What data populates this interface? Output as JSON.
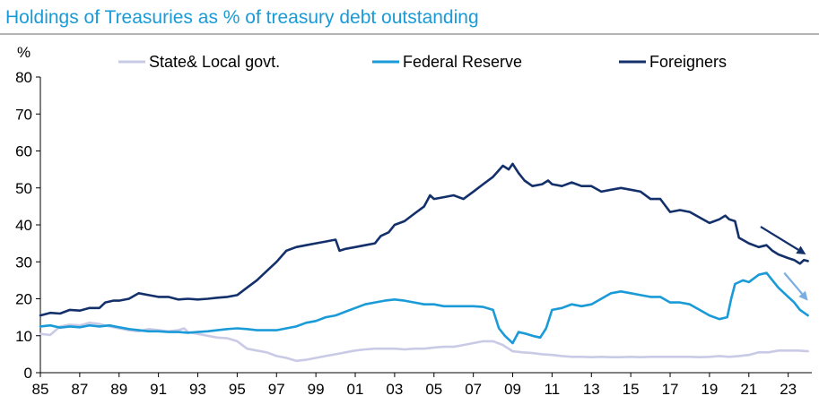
{
  "chart_data": {
    "type": "line",
    "title": "Holdings of Treasuries as % of treasury debt outstanding",
    "ylabel": "%",
    "xlabel": "",
    "xlim": [
      1985,
      2024.2
    ],
    "ylim": [
      0,
      80
    ],
    "yticks": [
      0,
      10,
      20,
      30,
      40,
      50,
      60,
      70,
      80
    ],
    "xticks": [
      {
        "x": 1985,
        "label": "85"
      },
      {
        "x": 1987,
        "label": "87"
      },
      {
        "x": 1989,
        "label": "89"
      },
      {
        "x": 1991,
        "label": "91"
      },
      {
        "x": 1993,
        "label": "93"
      },
      {
        "x": 1995,
        "label": "95"
      },
      {
        "x": 1997,
        "label": "97"
      },
      {
        "x": 1999,
        "label": "99"
      },
      {
        "x": 2001,
        "label": "01"
      },
      {
        "x": 2003,
        "label": "03"
      },
      {
        "x": 2005,
        "label": "05"
      },
      {
        "x": 2007,
        "label": "07"
      },
      {
        "x": 2009,
        "label": "09"
      },
      {
        "x": 2011,
        "label": "11"
      },
      {
        "x": 2013,
        "label": "13"
      },
      {
        "x": 2015,
        "label": "15"
      },
      {
        "x": 2017,
        "label": "17"
      },
      {
        "x": 2019,
        "label": "19"
      },
      {
        "x": 2021,
        "label": "21"
      },
      {
        "x": 2023,
        "label": "23"
      }
    ],
    "grid": false,
    "legend": "top",
    "title_color": "#1a9bd7",
    "series": [
      {
        "name": "State& Local govt.",
        "color": "#c9cbe6",
        "points": [
          [
            1985,
            10.5
          ],
          [
            1985.5,
            10.2
          ],
          [
            1986,
            12.5
          ],
          [
            1986.5,
            13
          ],
          [
            1987,
            12.8
          ],
          [
            1987.5,
            13.5
          ],
          [
            1988,
            13.2
          ],
          [
            1988.5,
            12.5
          ],
          [
            1989,
            12
          ],
          [
            1989.5,
            11.5
          ],
          [
            1990,
            11.2
          ],
          [
            1990.5,
            11.8
          ],
          [
            1991,
            11.5
          ],
          [
            1991.5,
            11.2
          ],
          [
            1992,
            11.5
          ],
          [
            1992.3,
            12
          ],
          [
            1992.5,
            11
          ],
          [
            1993,
            10.5
          ],
          [
            1993.5,
            10
          ],
          [
            1994,
            9.5
          ],
          [
            1994.5,
            9.3
          ],
          [
            1995,
            8.5
          ],
          [
            1995.5,
            6.5
          ],
          [
            1996,
            6
          ],
          [
            1996.5,
            5.5
          ],
          [
            1997,
            4.5
          ],
          [
            1997.5,
            4
          ],
          [
            1998,
            3.2
          ],
          [
            1998.5,
            3.5
          ],
          [
            1999,
            4
          ],
          [
            1999.5,
            4.5
          ],
          [
            2000,
            5
          ],
          [
            2000.5,
            5.5
          ],
          [
            2001,
            6
          ],
          [
            2001.5,
            6.3
          ],
          [
            2002,
            6.5
          ],
          [
            2002.5,
            6.5
          ],
          [
            2003,
            6.5
          ],
          [
            2003.5,
            6.3
          ],
          [
            2004,
            6.5
          ],
          [
            2004.5,
            6.5
          ],
          [
            2005,
            6.8
          ],
          [
            2005.5,
            7
          ],
          [
            2006,
            7
          ],
          [
            2006.5,
            7.5
          ],
          [
            2007,
            8
          ],
          [
            2007.5,
            8.5
          ],
          [
            2008,
            8.5
          ],
          [
            2008.5,
            7.5
          ],
          [
            2009,
            5.8
          ],
          [
            2009.5,
            5.5
          ],
          [
            2010,
            5.3
          ],
          [
            2010.5,
            5
          ],
          [
            2011,
            4.8
          ],
          [
            2011.5,
            4.5
          ],
          [
            2012,
            4.3
          ],
          [
            2012.5,
            4.3
          ],
          [
            2013,
            4.2
          ],
          [
            2013.5,
            4.3
          ],
          [
            2014,
            4.2
          ],
          [
            2014.5,
            4.2
          ],
          [
            2015,
            4.3
          ],
          [
            2015.5,
            4.2
          ],
          [
            2016,
            4.3
          ],
          [
            2016.5,
            4.3
          ],
          [
            2017,
            4.3
          ],
          [
            2017.5,
            4.3
          ],
          [
            2018,
            4.3
          ],
          [
            2018.5,
            4.2
          ],
          [
            2019,
            4.3
          ],
          [
            2019.5,
            4.5
          ],
          [
            2020,
            4.3
          ],
          [
            2020.5,
            4.5
          ],
          [
            2021,
            4.8
          ],
          [
            2021.5,
            5.5
          ],
          [
            2022,
            5.5
          ],
          [
            2022.5,
            6
          ],
          [
            2023,
            6
          ],
          [
            2023.5,
            6
          ],
          [
            2024,
            5.8
          ]
        ]
      },
      {
        "name": "Federal Reserve",
        "color": "#1a9bd7",
        "points": [
          [
            1985,
            12.5
          ],
          [
            1985.5,
            12.8
          ],
          [
            1986,
            12.2
          ],
          [
            1986.5,
            12.5
          ],
          [
            1987,
            12.3
          ],
          [
            1987.5,
            12.8
          ],
          [
            1988,
            12.5
          ],
          [
            1988.5,
            12.8
          ],
          [
            1989,
            12.3
          ],
          [
            1989.5,
            11.8
          ],
          [
            1990,
            11.5
          ],
          [
            1990.5,
            11.2
          ],
          [
            1991,
            11.2
          ],
          [
            1991.5,
            11
          ],
          [
            1992,
            11
          ],
          [
            1992.5,
            10.8
          ],
          [
            1993,
            11
          ],
          [
            1993.5,
            11.2
          ],
          [
            1994,
            11.5
          ],
          [
            1994.5,
            11.8
          ],
          [
            1995,
            12
          ],
          [
            1995.5,
            11.8
          ],
          [
            1996,
            11.5
          ],
          [
            1996.5,
            11.5
          ],
          [
            1997,
            11.5
          ],
          [
            1997.5,
            12
          ],
          [
            1998,
            12.5
          ],
          [
            1998.5,
            13.5
          ],
          [
            1999,
            14
          ],
          [
            1999.5,
            15
          ],
          [
            2000,
            15.5
          ],
          [
            2000.5,
            16.5
          ],
          [
            2001,
            17.5
          ],
          [
            2001.5,
            18.5
          ],
          [
            2002,
            19
          ],
          [
            2002.5,
            19.5
          ],
          [
            2003,
            19.8
          ],
          [
            2003.5,
            19.5
          ],
          [
            2004,
            19
          ],
          [
            2004.5,
            18.5
          ],
          [
            2005,
            18.5
          ],
          [
            2005.5,
            18
          ],
          [
            2006,
            18
          ],
          [
            2006.5,
            18
          ],
          [
            2007,
            18
          ],
          [
            2007.5,
            17.8
          ],
          [
            2008,
            17
          ],
          [
            2008.3,
            12
          ],
          [
            2008.6,
            10
          ],
          [
            2009,
            8
          ],
          [
            2009.3,
            11
          ],
          [
            2009.7,
            10.5
          ],
          [
            2010,
            10
          ],
          [
            2010.4,
            9.5
          ],
          [
            2010.7,
            12
          ],
          [
            2011,
            17
          ],
          [
            2011.5,
            17.5
          ],
          [
            2012,
            18.5
          ],
          [
            2012.5,
            18
          ],
          [
            2013,
            18.5
          ],
          [
            2013.5,
            20
          ],
          [
            2014,
            21.5
          ],
          [
            2014.5,
            22
          ],
          [
            2015,
            21.5
          ],
          [
            2015.5,
            21
          ],
          [
            2016,
            20.5
          ],
          [
            2016.5,
            20.5
          ],
          [
            2017,
            19
          ],
          [
            2017.5,
            19
          ],
          [
            2018,
            18.5
          ],
          [
            2018.5,
            17
          ],
          [
            2019,
            15.5
          ],
          [
            2019.5,
            14.5
          ],
          [
            2019.9,
            15
          ],
          [
            2020.1,
            20
          ],
          [
            2020.3,
            24
          ],
          [
            2020.7,
            25
          ],
          [
            2021,
            24.5
          ],
          [
            2021.5,
            26.5
          ],
          [
            2021.9,
            27
          ],
          [
            2022.2,
            25
          ],
          [
            2022.5,
            23
          ],
          [
            2023,
            20.5
          ],
          [
            2023.3,
            19
          ],
          [
            2023.6,
            17
          ],
          [
            2024,
            15.5
          ]
        ]
      },
      {
        "name": "Foreigners",
        "color": "#13306b",
        "points": [
          [
            1985,
            15.5
          ],
          [
            1985.5,
            16.2
          ],
          [
            1986,
            16
          ],
          [
            1986.5,
            17
          ],
          [
            1987,
            16.8
          ],
          [
            1987.5,
            17.5
          ],
          [
            1988,
            17.5
          ],
          [
            1988.3,
            19
          ],
          [
            1988.7,
            19.5
          ],
          [
            1989,
            19.5
          ],
          [
            1989.5,
            20
          ],
          [
            1990,
            21.5
          ],
          [
            1990.5,
            21
          ],
          [
            1991,
            20.5
          ],
          [
            1991.5,
            20.5
          ],
          [
            1992,
            19.8
          ],
          [
            1992.5,
            20
          ],
          [
            1993,
            19.8
          ],
          [
            1993.5,
            20
          ],
          [
            1994,
            20.3
          ],
          [
            1994.5,
            20.5
          ],
          [
            1995,
            21
          ],
          [
            1995.5,
            23
          ],
          [
            1996,
            25
          ],
          [
            1996.5,
            27.5
          ],
          [
            1997,
            30
          ],
          [
            1997.5,
            33
          ],
          [
            1998,
            34
          ],
          [
            1998.5,
            34.5
          ],
          [
            1999,
            35
          ],
          [
            1999.5,
            35.5
          ],
          [
            2000,
            36
          ],
          [
            2000.2,
            33
          ],
          [
            2000.5,
            33.5
          ],
          [
            2001,
            34
          ],
          [
            2001.5,
            34.5
          ],
          [
            2002,
            35
          ],
          [
            2002.3,
            37
          ],
          [
            2002.7,
            38
          ],
          [
            2003,
            40
          ],
          [
            2003.5,
            41
          ],
          [
            2004,
            43
          ],
          [
            2004.5,
            45
          ],
          [
            2004.8,
            48
          ],
          [
            2005,
            47
          ],
          [
            2005.5,
            47.5
          ],
          [
            2006,
            48
          ],
          [
            2006.5,
            47
          ],
          [
            2007,
            49
          ],
          [
            2007.5,
            51
          ],
          [
            2008,
            53
          ],
          [
            2008.5,
            56
          ],
          [
            2008.8,
            55
          ],
          [
            2009,
            56.5
          ],
          [
            2009.3,
            54
          ],
          [
            2009.6,
            52
          ],
          [
            2010,
            50.5
          ],
          [
            2010.5,
            51
          ],
          [
            2010.8,
            52
          ],
          [
            2011,
            51
          ],
          [
            2011.5,
            50.5
          ],
          [
            2012,
            51.5
          ],
          [
            2012.5,
            50.5
          ],
          [
            2013,
            50.5
          ],
          [
            2013.5,
            49
          ],
          [
            2014,
            49.5
          ],
          [
            2014.5,
            50
          ],
          [
            2015,
            49.5
          ],
          [
            2015.5,
            49
          ],
          [
            2016,
            47
          ],
          [
            2016.5,
            47
          ],
          [
            2017,
            43.5
          ],
          [
            2017.5,
            44
          ],
          [
            2018,
            43.5
          ],
          [
            2018.5,
            42
          ],
          [
            2019,
            40.5
          ],
          [
            2019.5,
            41.5
          ],
          [
            2019.8,
            42.5
          ],
          [
            2020,
            41.5
          ],
          [
            2020.3,
            41
          ],
          [
            2020.5,
            36.5
          ],
          [
            2021,
            35
          ],
          [
            2021.5,
            34
          ],
          [
            2021.9,
            34.5
          ],
          [
            2022.2,
            33
          ],
          [
            2022.5,
            32
          ],
          [
            2023,
            31
          ],
          [
            2023.3,
            30.5
          ],
          [
            2023.6,
            29.5
          ],
          [
            2023.8,
            30.5
          ],
          [
            2024,
            30.2
          ]
        ]
      }
    ],
    "annotations": [
      {
        "type": "arrow",
        "color": "#13306b",
        "from": [
          2021.6,
          39.5
        ],
        "to": [
          2023.9,
          32
        ]
      },
      {
        "type": "arrow",
        "color": "#7aaee0",
        "from": [
          2022.8,
          27
        ],
        "to": [
          2024,
          19.5
        ]
      }
    ]
  }
}
